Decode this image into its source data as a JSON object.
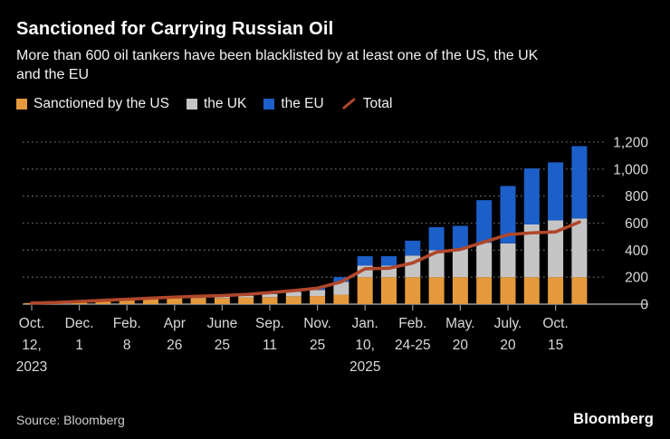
{
  "header": {
    "title": "Sanctioned for Carrying Russian Oil",
    "subtitle": "More than 600 oil tankers have been blacklisted by at least one of the US, the UK and the EU",
    "subtitle_lines": [
      "More than 600 oil tankers have been blacklisted by at least one of the US, the UK",
      "and the EU"
    ]
  },
  "legend": [
    {
      "label": "Sanctioned by the US",
      "color": "#E49A3C",
      "marker": "square"
    },
    {
      "label": "the UK",
      "color": "#C5C5C6",
      "marker": "square"
    },
    {
      "label": "the EU",
      "color": "#1C5FC9",
      "marker": "square"
    },
    {
      "label": "Total",
      "color": "#B0472B",
      "marker": "slash"
    }
  ],
  "chart_data": {
    "type": "bar",
    "subtype": "stacked-bars-with-line",
    "title": "Sanctioned for Carrying Russian Oil",
    "subtitle": "More than 600 oil tankers have been blacklisted by at least one of the US, the UK and the EU",
    "xlabel": "",
    "ylabel": "",
    "grid": "dotted-horizontal",
    "legend_position": "top-left",
    "background_color": "#000000",
    "y_axis": {
      "side": "right",
      "min": 0,
      "max": 1200,
      "ticks": [
        0,
        200,
        400,
        600,
        800,
        1000,
        1200
      ],
      "tick_labels": [
        "0",
        "200",
        "400",
        "600",
        "800",
        "1,000",
        "1,200"
      ]
    },
    "x_ticks": [
      {
        "bar_index": 0,
        "label": "Oct. 12, 2023",
        "lines": [
          "Oct.",
          "12,",
          "2023"
        ]
      },
      {
        "bar_index": 2,
        "label": "Dec. 1",
        "lines": [
          "Dec.",
          "1"
        ]
      },
      {
        "bar_index": 4,
        "label": "Feb. 8",
        "lines": [
          "Feb.",
          "8"
        ]
      },
      {
        "bar_index": 6,
        "label": "Apr 26",
        "lines": [
          "Apr",
          "26"
        ]
      },
      {
        "bar_index": 8,
        "label": "June 25",
        "lines": [
          "June",
          "25"
        ]
      },
      {
        "bar_index": 10,
        "label": "Sep. 11",
        "lines": [
          "Sep.",
          "11"
        ]
      },
      {
        "bar_index": 12,
        "label": "Nov. 25",
        "lines": [
          "Nov.",
          "25"
        ]
      },
      {
        "bar_index": 14,
        "label": "Jan. 10, 2025",
        "lines": [
          "Jan.",
          "10,",
          "2025"
        ]
      },
      {
        "bar_index": 16,
        "label": "Feb. 24-25",
        "lines": [
          "Feb.",
          "24-25"
        ]
      },
      {
        "bar_index": 18,
        "label": "May. 20",
        "lines": [
          "May.",
          "20"
        ]
      },
      {
        "bar_index": 20,
        "label": "July. 20",
        "lines": [
          "July.",
          "20"
        ]
      },
      {
        "bar_index": 22,
        "label": "Oct. 15",
        "lines": [
          "Oct.",
          "15"
        ]
      }
    ],
    "series": [
      {
        "key": "us",
        "name": "Sanctioned by the US",
        "color": "#E49A3C",
        "values": [
          8,
          12,
          20,
          28,
          33,
          38,
          42,
          45,
          45,
          50,
          52,
          58,
          60,
          70,
          200,
          200,
          200,
          200,
          200,
          200,
          200,
          200,
          200,
          200
        ]
      },
      {
        "key": "uk",
        "name": "the UK",
        "color": "#C5C5C6",
        "values": [
          0,
          0,
          2,
          3,
          5,
          6,
          7,
          8,
          10,
          12,
          22,
          34,
          45,
          95,
          85,
          85,
          160,
          200,
          210,
          255,
          250,
          390,
          420,
          435
        ]
      },
      {
        "key": "eu",
        "name": "the EU",
        "color": "#1C5FC9",
        "values": [
          0,
          0,
          0,
          0,
          0,
          0,
          0,
          0,
          0,
          0,
          5,
          8,
          15,
          35,
          70,
          70,
          110,
          170,
          170,
          315,
          425,
          415,
          430,
          535
        ]
      }
    ],
    "total_line": {
      "name": "Total",
      "color": "#B0472B",
      "values": [
        8,
        12,
        20,
        28,
        36,
        44,
        52,
        58,
        63,
        72,
        85,
        100,
        118,
        165,
        262,
        266,
        305,
        385,
        405,
        460,
        515,
        528,
        535,
        608
      ]
    }
  },
  "footer": {
    "source": "Source: Bloomberg",
    "logo": "Bloomberg"
  }
}
